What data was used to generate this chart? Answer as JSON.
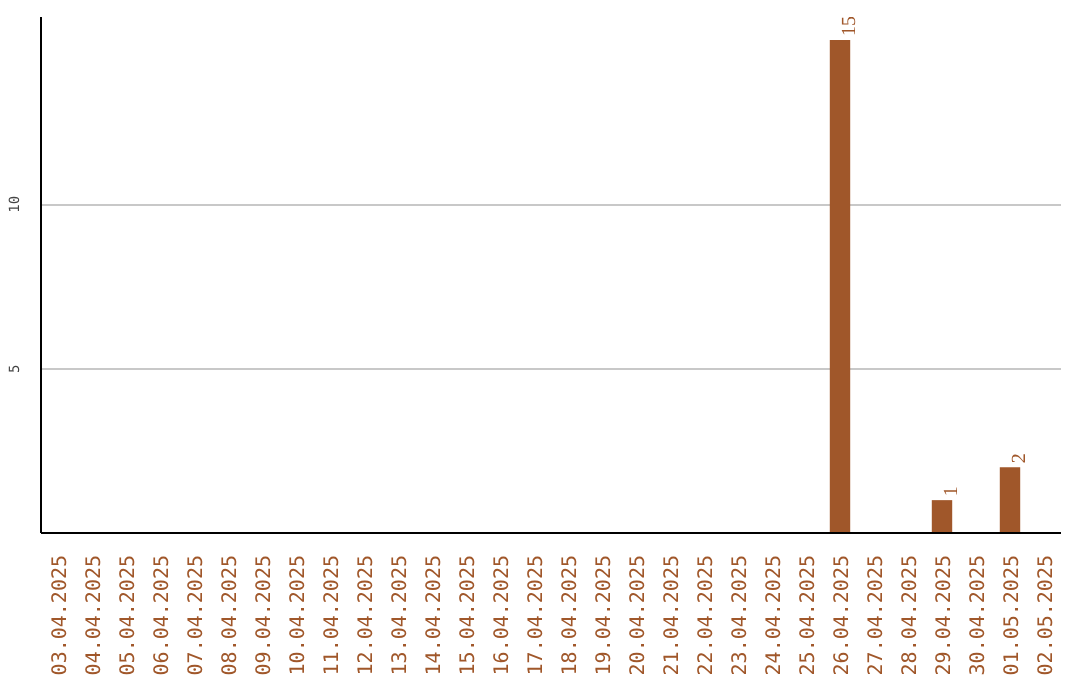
{
  "chart_data": {
    "type": "bar",
    "categories": [
      "03.04.2025",
      "04.04.2025",
      "05.04.2025",
      "06.04.2025",
      "07.04.2025",
      "08.04.2025",
      "09.04.2025",
      "10.04.2025",
      "11.04.2025",
      "12.04.2025",
      "13.04.2025",
      "14.04.2025",
      "15.04.2025",
      "16.04.2025",
      "17.04.2025",
      "18.04.2025",
      "19.04.2025",
      "20.04.2025",
      "21.04.2025",
      "22.04.2025",
      "23.04.2025",
      "24.04.2025",
      "25.04.2025",
      "26.04.2025",
      "27.04.2025",
      "28.04.2025",
      "29.04.2025",
      "30.04.2025",
      "01.05.2025",
      "02.05.2025"
    ],
    "values": [
      0,
      0,
      0,
      0,
      0,
      0,
      0,
      0,
      0,
      0,
      0,
      0,
      0,
      0,
      0,
      0,
      0,
      0,
      0,
      0,
      0,
      0,
      0,
      15,
      0,
      0,
      1,
      0,
      2,
      0
    ],
    "value_labels": [
      null,
      null,
      null,
      null,
      null,
      null,
      null,
      null,
      null,
      null,
      null,
      null,
      null,
      null,
      null,
      null,
      null,
      null,
      null,
      null,
      null,
      null,
      null,
      "15",
      null,
      null,
      "1",
      null,
      "2",
      null
    ],
    "color": "#a0572a",
    "ylim": [
      0,
      15.7
    ],
    "yticks": [
      5,
      10
    ],
    "grid": "y"
  }
}
